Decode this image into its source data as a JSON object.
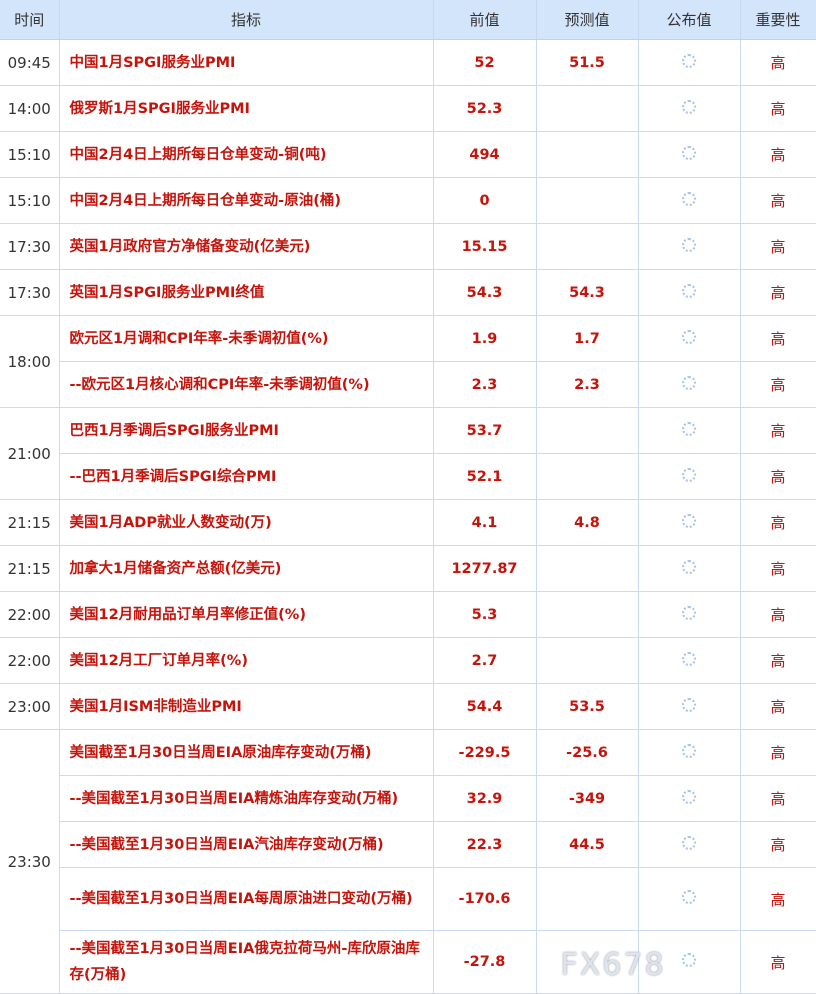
{
  "headers": {
    "time": "时间",
    "indicator": "指标",
    "previous": "前值",
    "forecast": "预测值",
    "actual": "公布值",
    "importance": "重要性"
  },
  "colors": {
    "header_bg": "#d3e5fb",
    "value_red": "#c4140c",
    "border": "#c8dbf3"
  },
  "groups": [
    {
      "time": "09:45",
      "rows": [
        {
          "name": "中国1月SPGI服务业PMI",
          "previous": "52",
          "forecast": "51.5",
          "importance": "高"
        }
      ]
    },
    {
      "time": "14:00",
      "rows": [
        {
          "name": "俄罗斯1月SPGI服务业PMI",
          "previous": "52.3",
          "forecast": "",
          "importance": "高"
        }
      ]
    },
    {
      "time": "15:10",
      "rows": [
        {
          "name": "中国2月4日上期所每日仓单变动-铜(吨)",
          "previous": "494",
          "forecast": "",
          "importance": "高"
        }
      ]
    },
    {
      "time": "15:10",
      "rows": [
        {
          "name": "中国2月4日上期所每日仓单变动-原油(桶)",
          "previous": "0",
          "forecast": "",
          "importance": "高"
        }
      ]
    },
    {
      "time": "17:30",
      "rows": [
        {
          "name": "英国1月政府官方净储备变动(亿美元)",
          "previous": "15.15",
          "forecast": "",
          "importance": "高"
        }
      ]
    },
    {
      "time": "17:30",
      "rows": [
        {
          "name": "英国1月SPGI服务业PMI终值",
          "previous": "54.3",
          "forecast": "54.3",
          "importance": "高"
        }
      ]
    },
    {
      "time": "18:00",
      "rows": [
        {
          "name": "欧元区1月调和CPI年率-未季调初值(%)",
          "previous": "1.9",
          "forecast": "1.7",
          "importance": "高"
        },
        {
          "name": "--欧元区1月核心调和CPI年率-未季调初值(%)",
          "previous": "2.3",
          "forecast": "2.3",
          "importance": "高"
        }
      ]
    },
    {
      "time": "21:00",
      "rows": [
        {
          "name": "巴西1月季调后SPGI服务业PMI",
          "previous": "53.7",
          "forecast": "",
          "importance": "高"
        },
        {
          "name": "--巴西1月季调后SPGI综合PMI",
          "previous": "52.1",
          "forecast": "",
          "importance": "高"
        }
      ]
    },
    {
      "time": "21:15",
      "rows": [
        {
          "name": "美国1月ADP就业人数变动(万)",
          "previous": "4.1",
          "forecast": "4.8",
          "importance": "高"
        }
      ]
    },
    {
      "time": "21:15",
      "rows": [
        {
          "name": "加拿大1月储备资产总额(亿美元)",
          "previous": "1277.87",
          "forecast": "",
          "importance": "高"
        }
      ]
    },
    {
      "time": "22:00",
      "rows": [
        {
          "name": "美国12月耐用品订单月率修正值(%)",
          "previous": "5.3",
          "forecast": "",
          "importance": "高"
        }
      ]
    },
    {
      "time": "22:00",
      "rows": [
        {
          "name": "美国12月工厂订单月率(%)",
          "previous": "2.7",
          "forecast": "",
          "importance": "高"
        }
      ]
    },
    {
      "time": "23:00",
      "rows": [
        {
          "name": "美国1月ISM非制造业PMI",
          "previous": "54.4",
          "forecast": "53.5",
          "importance": "高"
        }
      ]
    },
    {
      "time": "23:30",
      "rows": [
        {
          "name": "美国截至1月30日当周EIA原油库存变动(万桶)",
          "previous": "-229.5",
          "forecast": "-25.6",
          "importance": "高"
        },
        {
          "name": "--美国截至1月30日当周EIA精炼油库存变动(万桶)",
          "previous": "32.9",
          "forecast": "-349",
          "importance": "高"
        },
        {
          "name": "--美国截至1月30日当周EIA汽油库存变动(万桶)",
          "previous": "22.3",
          "forecast": "44.5",
          "importance": "高"
        },
        {
          "name": "--美国截至1月30日当周EIA每周原油进口变动(万桶)",
          "previous": "-170.6",
          "forecast": "",
          "importance": "高",
          "tall": true
        },
        {
          "name": "--美国截至1月30日当周EIA俄克拉荷马州-库欣原油库存(万桶)",
          "previous": "-27.8",
          "forecast": "",
          "importance": "高",
          "tall": true
        }
      ]
    }
  ],
  "watermark": "FX678"
}
